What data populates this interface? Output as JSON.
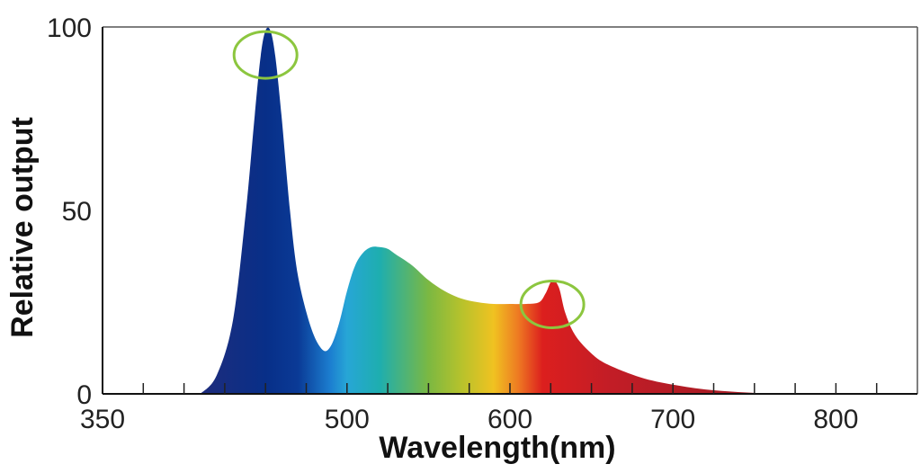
{
  "chart_data": {
    "type": "area",
    "xlabel": "Wavelength(nm)",
    "ylabel": "Relative output",
    "xlim": [
      350,
      850
    ],
    "ylim": [
      0,
      100
    ],
    "x_ticks": [
      350,
      500,
      600,
      700,
      800
    ],
    "x_tick_labels": [
      "350",
      "500",
      "600",
      "700",
      "800"
    ],
    "x_minor_ticks": [
      375,
      400,
      425,
      450,
      475,
      500,
      525,
      550,
      575,
      600,
      625,
      650,
      675,
      700,
      725,
      750,
      775,
      800,
      825
    ],
    "y_ticks": [
      0,
      50,
      100
    ],
    "y_tick_labels": [
      "0",
      "50",
      "100"
    ],
    "grid": false,
    "series": [
      {
        "x": [
          410,
          420,
          430,
          438,
          443,
          447,
          450,
          453,
          456,
          460,
          465,
          470,
          478,
          485,
          490,
          495,
          500,
          505,
          510,
          515,
          520,
          525,
          530,
          540,
          550,
          560,
          570,
          580,
          590,
          600,
          610,
          618,
          622,
          626,
          630,
          634,
          640,
          650,
          660,
          680,
          700,
          720,
          740,
          760,
          770
        ],
        "y": [
          0,
          5,
          20,
          50,
          74,
          92,
          99,
          99,
          92,
          75,
          50,
          32,
          18,
          12,
          13,
          19,
          28,
          35,
          38.5,
          40,
          40,
          39.5,
          38,
          35,
          31,
          28,
          26,
          25,
          24.5,
          24.5,
          24.5,
          25,
          27.5,
          31,
          29,
          22,
          16,
          11,
          8,
          4.5,
          2.5,
          1.2,
          0.5,
          0.1,
          0
        ]
      }
    ],
    "spectrum_colors": [
      {
        "nm": 410,
        "color": "#1e2c7c"
      },
      {
        "nm": 450,
        "color": "#082f88"
      },
      {
        "nm": 470,
        "color": "#0a3a96"
      },
      {
        "nm": 490,
        "color": "#1c7fd0"
      },
      {
        "nm": 500,
        "color": "#27a6d6"
      },
      {
        "nm": 520,
        "color": "#1eaeaf"
      },
      {
        "nm": 550,
        "color": "#7bb842"
      },
      {
        "nm": 570,
        "color": "#b6c22c"
      },
      {
        "nm": 590,
        "color": "#f0c221"
      },
      {
        "nm": 605,
        "color": "#ee7a22"
      },
      {
        "nm": 620,
        "color": "#dc1f1e"
      },
      {
        "nm": 660,
        "color": "#c31d26"
      },
      {
        "nm": 770,
        "color": "#9b1b24"
      }
    ],
    "highlight_peaks": [
      {
        "x": 450,
        "y": 99,
        "color": "#8cc63f"
      },
      {
        "x": 626,
        "y": 31,
        "color": "#8cc63f"
      }
    ]
  }
}
